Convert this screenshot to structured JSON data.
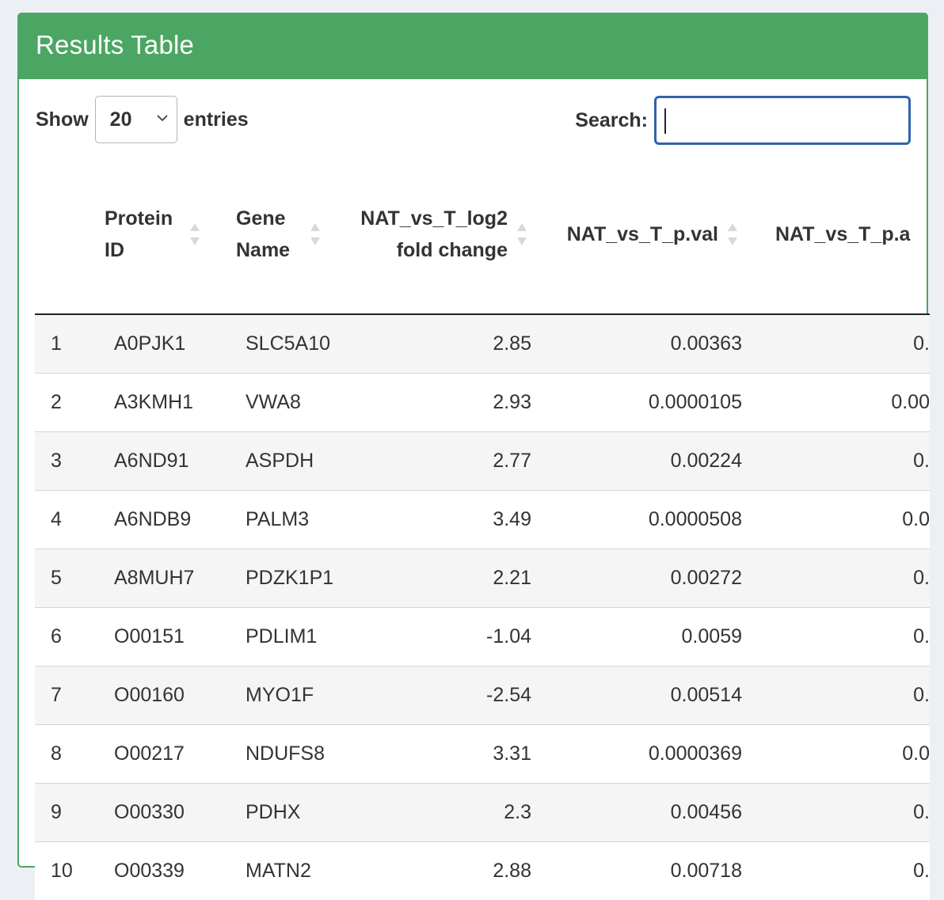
{
  "panel": {
    "title": "Results Table"
  },
  "controls": {
    "show_label": "Show",
    "entries_value": "20",
    "entries_label": "entries",
    "search_label": "Search:",
    "search_value": ""
  },
  "table": {
    "columns": [
      {
        "label_line1": "Protein",
        "label_line2": "ID"
      },
      {
        "label_line1": "Gene",
        "label_line2": "Name"
      },
      {
        "label_line1": "NAT_vs_T_log2",
        "label_line2": "fold change"
      },
      {
        "label_line1": "NAT_vs_T_p.val",
        "label_line2": ""
      },
      {
        "label_line1": "NAT_vs_T_p.a",
        "label_line2": ""
      }
    ],
    "rows": [
      {
        "index": "1",
        "protein_id": "A0PJK1",
        "gene_name": "SLC5A10",
        "log2fc": "2.85",
        "p_val": "0.00363",
        "p_adj": "0."
      },
      {
        "index": "2",
        "protein_id": "A3KMH1",
        "gene_name": "VWA8",
        "log2fc": "2.93",
        "p_val": "0.0000105",
        "p_adj": "0.00"
      },
      {
        "index": "3",
        "protein_id": "A6ND91",
        "gene_name": "ASPDH",
        "log2fc": "2.77",
        "p_val": "0.00224",
        "p_adj": "0."
      },
      {
        "index": "4",
        "protein_id": "A6NDB9",
        "gene_name": "PALM3",
        "log2fc": "3.49",
        "p_val": "0.0000508",
        "p_adj": "0.0"
      },
      {
        "index": "5",
        "protein_id": "A8MUH7",
        "gene_name": "PDZK1P1",
        "log2fc": "2.21",
        "p_val": "0.00272",
        "p_adj": "0."
      },
      {
        "index": "6",
        "protein_id": "O00151",
        "gene_name": "PDLIM1",
        "log2fc": "-1.04",
        "p_val": "0.0059",
        "p_adj": "0."
      },
      {
        "index": "7",
        "protein_id": "O00160",
        "gene_name": "MYO1F",
        "log2fc": "-2.54",
        "p_val": "0.00514",
        "p_adj": "0."
      },
      {
        "index": "8",
        "protein_id": "O00217",
        "gene_name": "NDUFS8",
        "log2fc": "3.31",
        "p_val": "0.0000369",
        "p_adj": "0.0"
      },
      {
        "index": "9",
        "protein_id": "O00330",
        "gene_name": "PDHX",
        "log2fc": "2.3",
        "p_val": "0.00456",
        "p_adj": "0."
      },
      {
        "index": "10",
        "protein_id": "O00339",
        "gene_name": "MATN2",
        "log2fc": "2.88",
        "p_val": "0.00718",
        "p_adj": "0."
      }
    ]
  },
  "colors": {
    "header_green": "#4ca663",
    "search_border": "#2f63ad",
    "row_stripe": "#f5f5f5"
  },
  "icons": {
    "length_dropdown": "chevron-down-icon",
    "column_sort": "sort-both-icon"
  }
}
